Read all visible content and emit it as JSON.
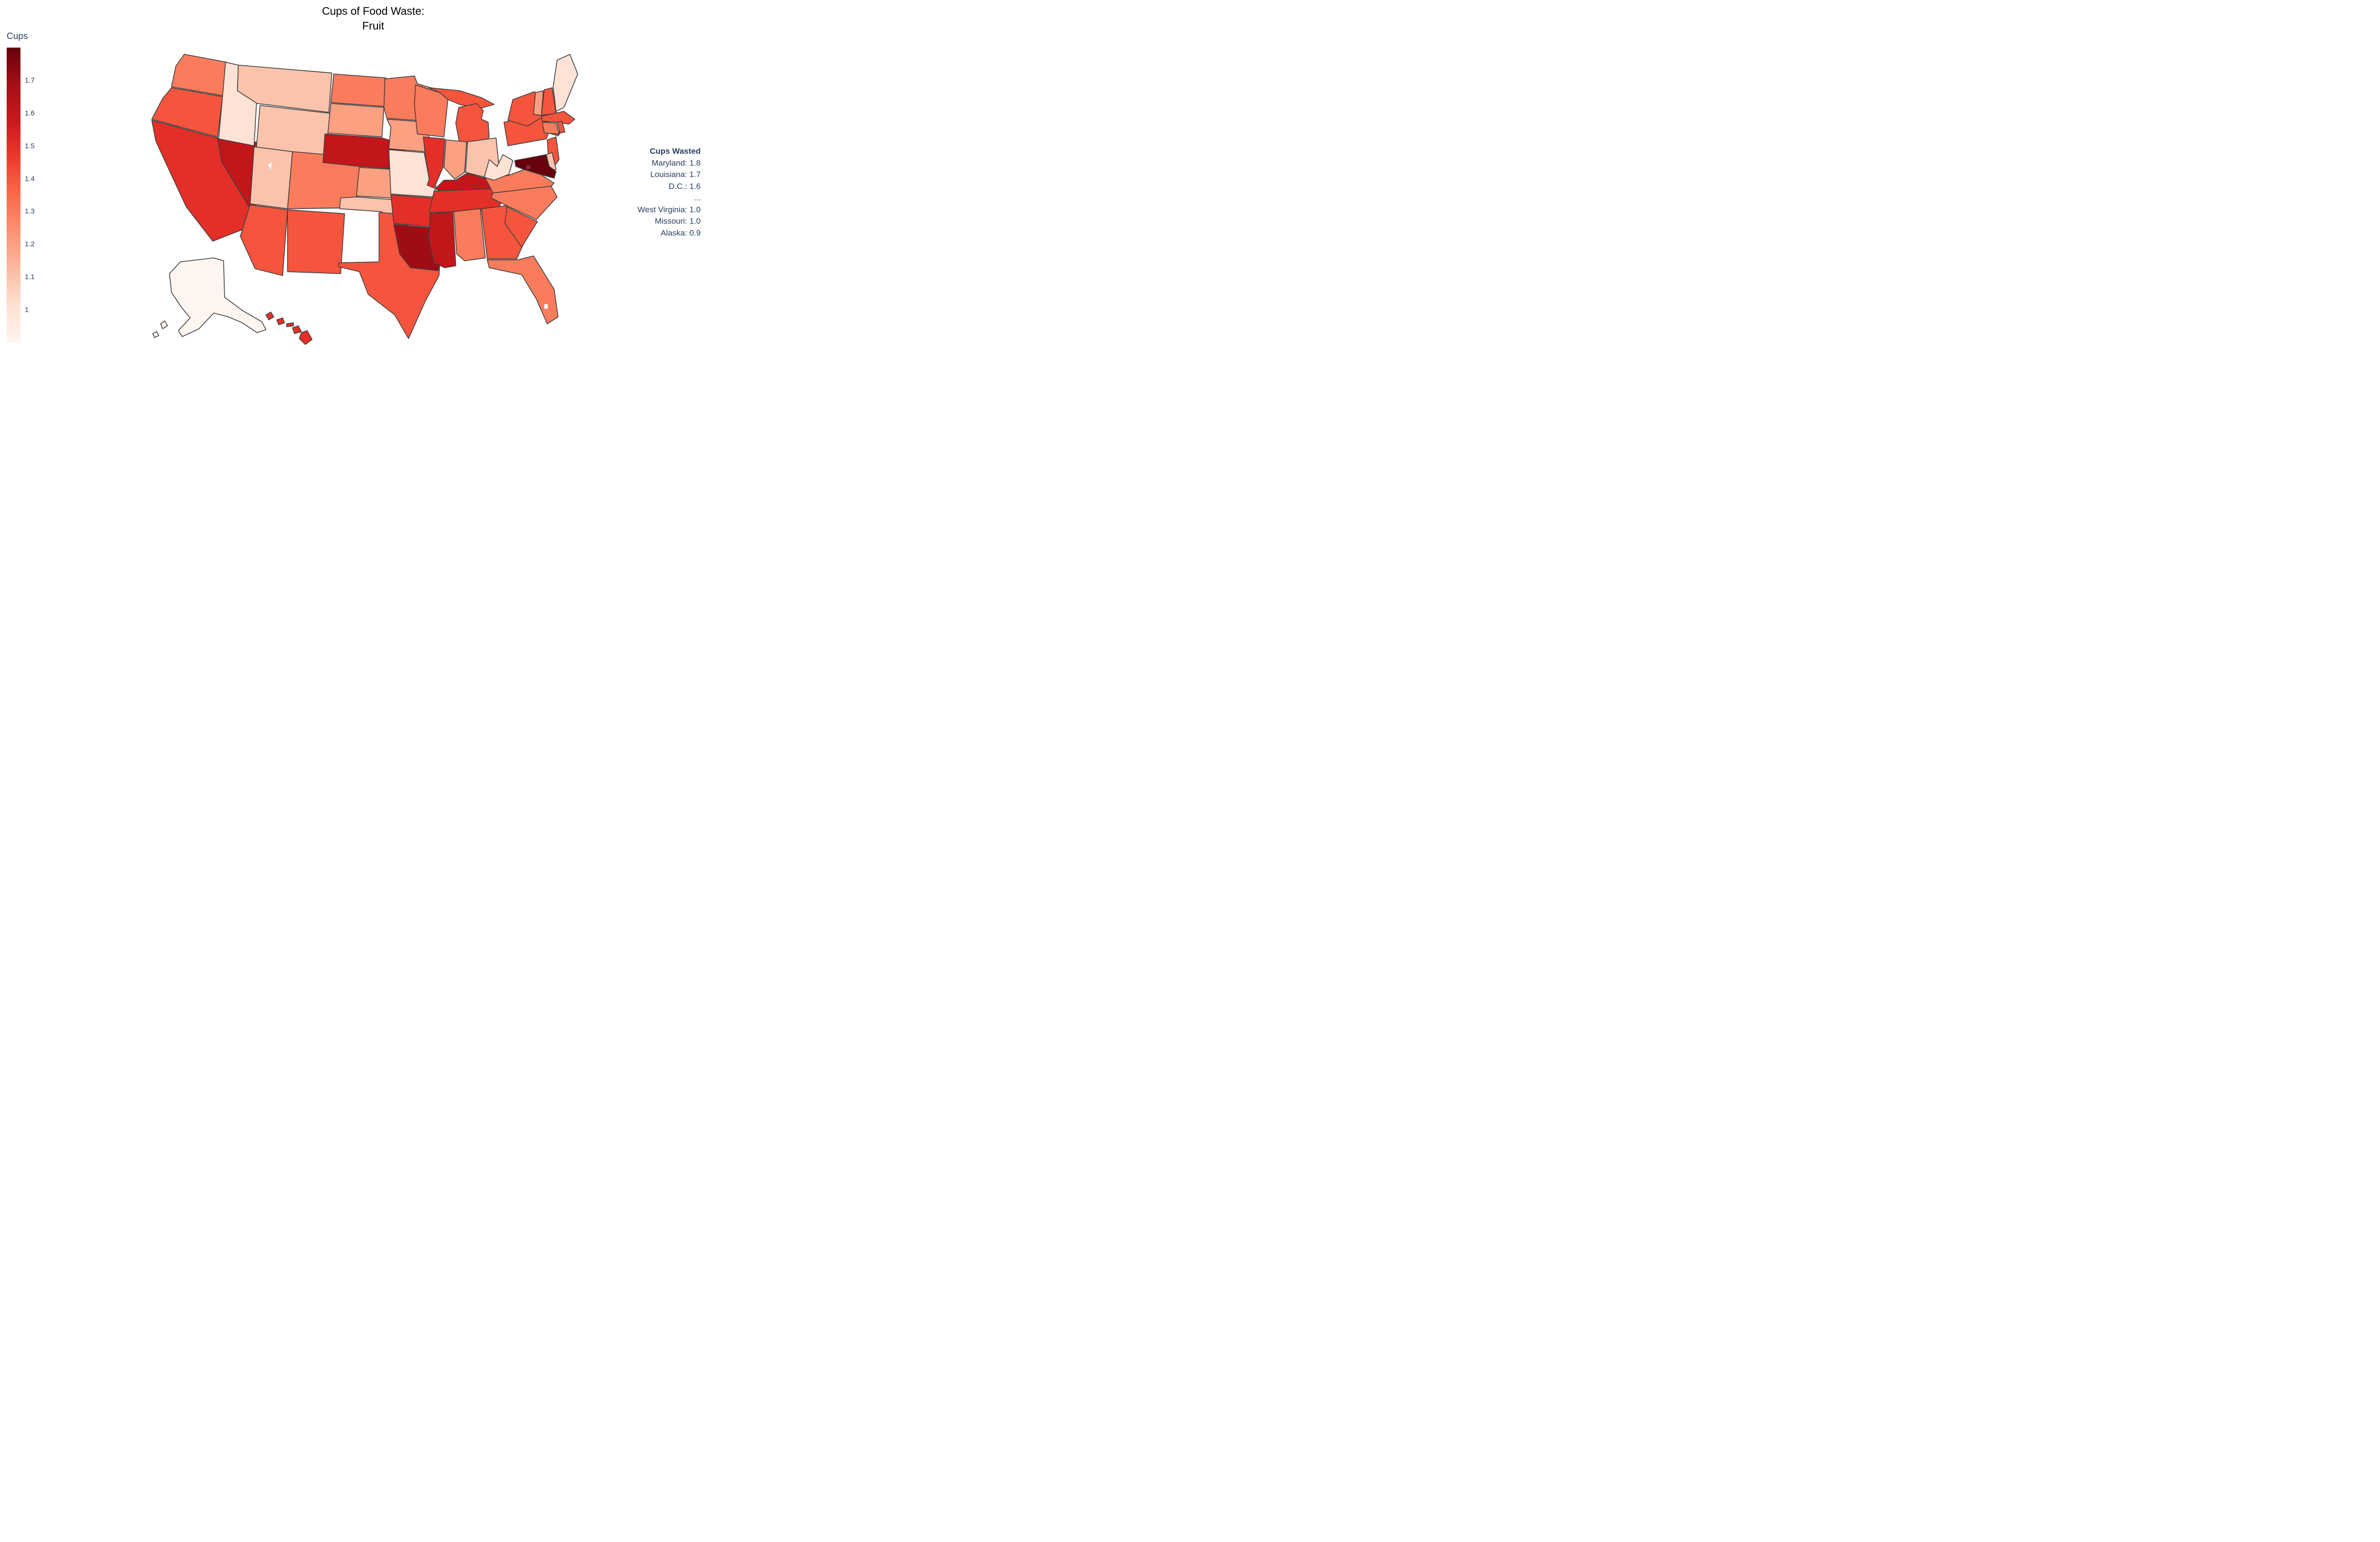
{
  "title": {
    "line1": "Cups of Food Waste:",
    "line2": "Fruit"
  },
  "colorbar": {
    "title": "Cups",
    "zmin": 0.9,
    "zmax": 1.8,
    "ticks": [
      {
        "label": "1.7",
        "value": 1.7
      },
      {
        "label": "1.6",
        "value": 1.6
      },
      {
        "label": "1.5",
        "value": 1.5
      },
      {
        "label": "1.4",
        "value": 1.4
      },
      {
        "label": "1.3",
        "value": 1.3
      },
      {
        "label": "1.2",
        "value": 1.2
      },
      {
        "label": "1.1",
        "value": 1.1
      },
      {
        "label": "1",
        "value": 1.0
      }
    ],
    "colorscale": [
      [
        0,
        "#fff5f0"
      ],
      [
        0.125,
        "#fee0d2"
      ],
      [
        0.25,
        "#fcbba1"
      ],
      [
        0.375,
        "#fc9272"
      ],
      [
        0.5,
        "#fb6a4a"
      ],
      [
        0.625,
        "#ef3b2c"
      ],
      [
        0.75,
        "#cb181d"
      ],
      [
        0.875,
        "#a50f15"
      ],
      [
        1,
        "#67000d"
      ]
    ]
  },
  "annotation": {
    "title": "Cups Wasted",
    "lines": [
      "Maryland: 1.8",
      "Louisiana: 1.7",
      "D.C.: 1.6",
      "...",
      "West Virginia: 1.0",
      "Missouri: 1.0",
      "Alaska: 0.9"
    ]
  },
  "colors": {
    "text": "#2a3f5f",
    "title_text": "#000000",
    "state_border": "#3f3f3f",
    "background": "#ffffff"
  },
  "chart_data": {
    "type": "choropleth",
    "projection": "albers-usa",
    "title": "Cups of Food Waste: Fruit",
    "legend_title": "Cups",
    "colorscale_name": "Reds",
    "zmin": 0.9,
    "zmax": 1.8,
    "highest": [
      [
        "Maryland",
        1.8
      ],
      [
        "Louisiana",
        1.7
      ],
      [
        "D.C.",
        1.6
      ]
    ],
    "lowest": [
      [
        "West Virginia",
        1.0
      ],
      [
        "Missouri",
        1.0
      ],
      [
        "Alaska",
        0.9
      ]
    ],
    "states": [
      {
        "name": "Alabama",
        "abbr": "AL",
        "value": 1.3
      },
      {
        "name": "Alaska",
        "abbr": "AK",
        "value": 0.9
      },
      {
        "name": "Arizona",
        "abbr": "AZ",
        "value": 1.4
      },
      {
        "name": "Arkansas",
        "abbr": "AR",
        "value": 1.5
      },
      {
        "name": "California",
        "abbr": "CA",
        "value": 1.5
      },
      {
        "name": "Colorado",
        "abbr": "CO",
        "value": 1.3
      },
      {
        "name": "Connecticut",
        "abbr": "CT",
        "value": 1.3
      },
      {
        "name": "Delaware",
        "abbr": "DE",
        "value": 1.1
      },
      {
        "name": "D.C.",
        "abbr": "DC",
        "value": 1.6
      },
      {
        "name": "Florida",
        "abbr": "FL",
        "value": 1.3
      },
      {
        "name": "Georgia",
        "abbr": "GA",
        "value": 1.4
      },
      {
        "name": "Hawaii",
        "abbr": "HI",
        "value": 1.5
      },
      {
        "name": "Idaho",
        "abbr": "ID",
        "value": 1.0
      },
      {
        "name": "Illinois",
        "abbr": "IL",
        "value": 1.5
      },
      {
        "name": "Indiana",
        "abbr": "IN",
        "value": 1.2
      },
      {
        "name": "Iowa",
        "abbr": "IA",
        "value": 1.2
      },
      {
        "name": "Kansas",
        "abbr": "KS",
        "value": 1.2
      },
      {
        "name": "Kentucky",
        "abbr": "KY",
        "value": 1.6
      },
      {
        "name": "Louisiana",
        "abbr": "LA",
        "value": 1.7
      },
      {
        "name": "Maine",
        "abbr": "ME",
        "value": 1.0
      },
      {
        "name": "Maryland",
        "abbr": "MD",
        "value": 1.8
      },
      {
        "name": "Massachusetts",
        "abbr": "MA",
        "value": 1.4
      },
      {
        "name": "Michigan",
        "abbr": "MI",
        "value": 1.4
      },
      {
        "name": "Minnesota",
        "abbr": "MN",
        "value": 1.3
      },
      {
        "name": "Mississippi",
        "abbr": "MS",
        "value": 1.6
      },
      {
        "name": "Missouri",
        "abbr": "MO",
        "value": 1.0
      },
      {
        "name": "Montana",
        "abbr": "MT",
        "value": 1.1
      },
      {
        "name": "Nebraska",
        "abbr": "NE",
        "value": 1.6
      },
      {
        "name": "Nevada",
        "abbr": "NV",
        "value": 1.6
      },
      {
        "name": "New Hampshire",
        "abbr": "NH",
        "value": 1.4
      },
      {
        "name": "New Jersey",
        "abbr": "NJ",
        "value": 1.4
      },
      {
        "name": "New Mexico",
        "abbr": "NM",
        "value": 1.4
      },
      {
        "name": "New York",
        "abbr": "NY",
        "value": 1.4
      },
      {
        "name": "North Carolina",
        "abbr": "NC",
        "value": 1.3
      },
      {
        "name": "North Dakota",
        "abbr": "ND",
        "value": 1.3
      },
      {
        "name": "Ohio",
        "abbr": "OH",
        "value": 1.1
      },
      {
        "name": "Oklahoma",
        "abbr": "OK",
        "value": 1.1
      },
      {
        "name": "Oregon",
        "abbr": "OR",
        "value": 1.4
      },
      {
        "name": "Pennsylvania",
        "abbr": "PA",
        "value": 1.4
      },
      {
        "name": "Rhode Island",
        "abbr": "RI",
        "value": 1.4
      },
      {
        "name": "South Carolina",
        "abbr": "SC",
        "value": 1.4
      },
      {
        "name": "South Dakota",
        "abbr": "SD",
        "value": 1.2
      },
      {
        "name": "Tennessee",
        "abbr": "TN",
        "value": 1.5
      },
      {
        "name": "Texas",
        "abbr": "TX",
        "value": 1.4
      },
      {
        "name": "Utah",
        "abbr": "UT",
        "value": 1.1
      },
      {
        "name": "Vermont",
        "abbr": "VT",
        "value": 1.2
      },
      {
        "name": "Virginia",
        "abbr": "VA",
        "value": 1.3
      },
      {
        "name": "Washington",
        "abbr": "WA",
        "value": 1.3
      },
      {
        "name": "West Virginia",
        "abbr": "WV",
        "value": 1.0
      },
      {
        "name": "Wisconsin",
        "abbr": "WI",
        "value": 1.3
      },
      {
        "name": "Wyoming",
        "abbr": "WY",
        "value": 1.1
      }
    ]
  }
}
